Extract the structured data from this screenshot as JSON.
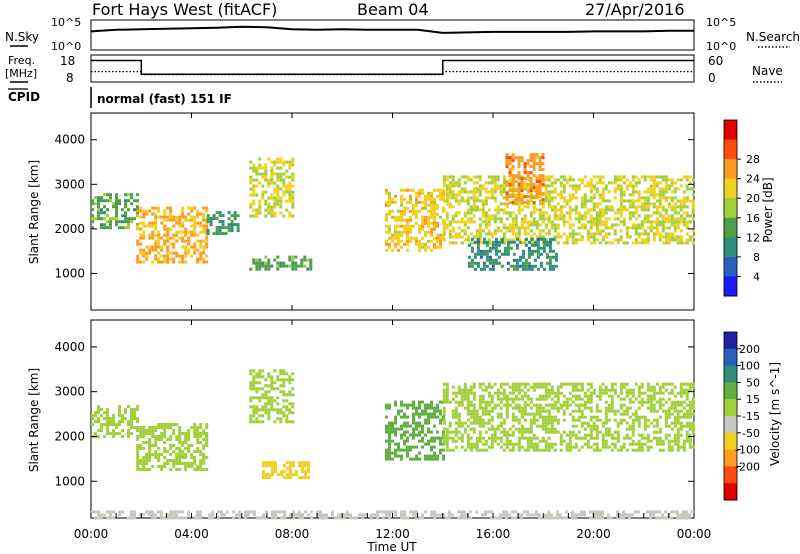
{
  "header": {
    "title": "Fort Hays West (fitACF)",
    "beam": "Beam 04",
    "date": "27/Apr/2016"
  },
  "noise_panel": {
    "left_label": "N.Sky",
    "right_label": "N.Search",
    "left_ticks": [
      "10^5",
      "10^0"
    ],
    "right_ticks": [
      "10^5",
      "10^0"
    ]
  },
  "freq_panel": {
    "left_label_line1": "Freq.",
    "left_label_line2": "[MHz]",
    "right_label": "Nave",
    "left_ticks": [
      "18",
      "8"
    ],
    "right_ticks": [
      "60",
      "0"
    ]
  },
  "cpid_panel": {
    "label": "CPID",
    "mode_text": "normal (fast) 151 IF"
  },
  "time_axis": {
    "label": "Time UT",
    "tick_labels": [
      "00:00",
      "04:00",
      "08:00",
      "12:00",
      "16:00",
      "20:00",
      "00:00"
    ]
  },
  "chart_data": [
    {
      "type": "line",
      "title": "N.Sky / N.Search",
      "x_unit": "hours UT",
      "series": [
        {
          "name": "N.Sky",
          "x": [
            0,
            1,
            2,
            3,
            4,
            5,
            6,
            7,
            8,
            9,
            10,
            11,
            12,
            13,
            14,
            15,
            16,
            17,
            18,
            19,
            20,
            21,
            22,
            23,
            24
          ],
          "values_log10": [
            3.2,
            3.5,
            3.6,
            3.7,
            3.8,
            3.9,
            4.1,
            4.0,
            3.6,
            3.5,
            3.6,
            3.5,
            3.5,
            3.5,
            2.9,
            3.0,
            3.1,
            3.1,
            3.1,
            3.1,
            3.2,
            3.2,
            3.2,
            3.3,
            3.3
          ]
        }
      ],
      "ylim_log10": [
        0,
        5
      ]
    },
    {
      "type": "line",
      "title": "Freq. / Nave",
      "series": [
        {
          "name": "Freq.",
          "x": [
            0,
            2,
            2,
            14,
            14,
            24
          ],
          "values": [
            16.5,
            16.5,
            10.5,
            10.5,
            16.5,
            16.5
          ]
        },
        {
          "name": "Nave",
          "x": [
            0,
            2,
            2,
            14,
            14,
            24
          ],
          "values": [
            22,
            22,
            14,
            14,
            22,
            22
          ]
        }
      ],
      "ylim_freq": [
        8,
        18
      ],
      "ylim_nave": [
        0,
        60
      ]
    },
    {
      "type": "heatmap",
      "quantity": "Power",
      "colorbar_label": "Power [dB]",
      "colorbar_ticks": [
        4,
        8,
        12,
        16,
        20,
        24,
        28
      ],
      "colorbar_colors": [
        "#1a1aff",
        "#2a5fbf",
        "#2f8f7a",
        "#4f9f4a",
        "#9fd03a",
        "#f0d020",
        "#ff9a20",
        "#ff4a10",
        "#e00000"
      ],
      "xlabel": "Time UT",
      "ylabel": "Slant Range [km]",
      "xlim_hours": [
        0,
        24
      ],
      "ylim_km": [
        180,
        4600
      ],
      "y_ticks": [
        1000,
        2000,
        3000,
        4000
      ],
      "echo_regions": [
        {
          "t0": 0.0,
          "t1": 1.8,
          "r0": 2000,
          "r1": 2800,
          "level": 12
        },
        {
          "t0": 1.8,
          "t1": 4.6,
          "r0": 1250,
          "r1": 2500,
          "level": 22
        },
        {
          "t0": 4.6,
          "t1": 5.8,
          "r0": 1900,
          "r1": 2400,
          "level": 10
        },
        {
          "t0": 6.3,
          "t1": 8.0,
          "r0": 2300,
          "r1": 3600,
          "level": 18
        },
        {
          "t0": 6.3,
          "t1": 8.8,
          "r0": 1100,
          "r1": 1400,
          "level": 12
        },
        {
          "t0": 11.7,
          "t1": 14.0,
          "r0": 1500,
          "r1": 2900,
          "level": 20
        },
        {
          "t0": 14.0,
          "t1": 24.0,
          "r0": 1700,
          "r1": 3200,
          "level": 18
        },
        {
          "t0": 15.0,
          "t1": 18.5,
          "r0": 1100,
          "r1": 1800,
          "level": 8
        },
        {
          "t0": 16.5,
          "t1": 18.0,
          "r0": 2600,
          "r1": 3700,
          "level": 24
        }
      ]
    },
    {
      "type": "heatmap",
      "quantity": "Velocity",
      "colorbar_label": "Velocity [m s^-1]",
      "colorbar_ticks": [
        200,
        100,
        50,
        15,
        -15,
        -50,
        -100,
        -200
      ],
      "colorbar_colors": [
        "#2020a0",
        "#2a5fbf",
        "#2f8f7a",
        "#5fb040",
        "#9fd03a",
        "#c8c8c0",
        "#f0d020",
        "#ff9a20",
        "#ff4a10",
        "#e00000"
      ],
      "xlabel": "Time UT",
      "ylabel": "Slant Range [km]",
      "xlim_hours": [
        0,
        24
      ],
      "ylim_km": [
        180,
        4600
      ],
      "y_ticks": [
        1000,
        2000,
        3000,
        4000
      ],
      "echo_regions": [
        {
          "t0": 0.0,
          "t1": 1.8,
          "r0": 2000,
          "r1": 2700,
          "level": 0
        },
        {
          "t0": 1.8,
          "t1": 4.6,
          "r0": 1250,
          "r1": 2300,
          "level": -10
        },
        {
          "t0": 6.3,
          "t1": 8.0,
          "r0": 2300,
          "r1": 3500,
          "level": 0
        },
        {
          "t0": 6.8,
          "t1": 8.7,
          "r0": 1050,
          "r1": 1450,
          "level": -60
        },
        {
          "t0": 11.7,
          "t1": 14.0,
          "r0": 1500,
          "r1": 2800,
          "level": 20
        },
        {
          "t0": 14.0,
          "t1": 24.0,
          "r0": 1700,
          "r1": 3200,
          "level": 0
        },
        {
          "t0": 0.0,
          "t1": 24.0,
          "r0": 180,
          "r1": 350,
          "level": -30
        }
      ]
    }
  ]
}
